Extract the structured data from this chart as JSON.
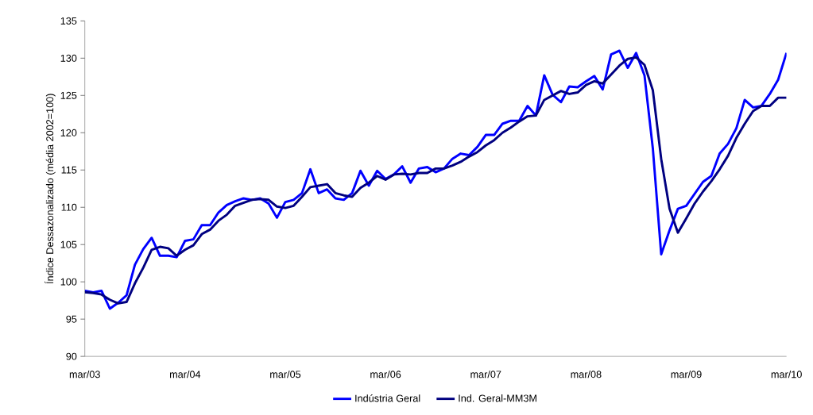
{
  "chart_data": {
    "type": "line",
    "ylabel": "Índice Dessazonalizado (média 2002=100)",
    "categories": [
      "mar/03",
      null,
      null,
      null,
      null,
      null,
      null,
      null,
      null,
      null,
      null,
      null,
      "mar/04",
      null,
      null,
      null,
      null,
      null,
      null,
      null,
      null,
      null,
      null,
      null,
      "mar/05",
      null,
      null,
      null,
      null,
      null,
      null,
      null,
      null,
      null,
      null,
      null,
      "mar/06",
      null,
      null,
      null,
      null,
      null,
      null,
      null,
      null,
      null,
      null,
      null,
      "mar/07",
      null,
      null,
      null,
      null,
      null,
      null,
      null,
      null,
      null,
      null,
      null,
      "mar/08",
      null,
      null,
      null,
      null,
      null,
      null,
      null,
      null,
      null,
      null,
      null,
      "mar/09",
      null,
      null,
      null,
      null,
      null,
      null,
      null,
      null,
      null,
      null,
      null,
      "mar/10"
    ],
    "series": [
      {
        "name": "Indústria Geral",
        "color": "#0000ff",
        "values": [
          98.8,
          98.6,
          98.8,
          96.4,
          97.2,
          98.2,
          102.3,
          104.4,
          105.9,
          103.5,
          103.5,
          103.3,
          105.5,
          105.7,
          107.6,
          107.6,
          109.3,
          110.3,
          110.8,
          111.2,
          111.0,
          111.2,
          110.5,
          108.6,
          110.7,
          111.0,
          111.9,
          115.1,
          111.9,
          112.4,
          111.2,
          111.0,
          111.9,
          114.9,
          112.9,
          114.9,
          113.8,
          114.4,
          115.5,
          113.3,
          115.2,
          115.4,
          114.7,
          115.2,
          116.5,
          117.2,
          117.0,
          118.1,
          119.7,
          119.7,
          121.2,
          121.6,
          121.6,
          123.6,
          122.3,
          127.7,
          125.1,
          124.1,
          126.2,
          126.1,
          126.9,
          127.6,
          125.8,
          130.5,
          131.0,
          128.7,
          130.7,
          127.7,
          117.9,
          103.7,
          106.9,
          109.8,
          110.2,
          111.8,
          113.4,
          114.2,
          117.2,
          118.5,
          120.6,
          124.4,
          123.4,
          123.6,
          125.2,
          127.1,
          130.7
        ]
      },
      {
        "name": "Ind. Geral-MM3M",
        "color": "#000080",
        "values": [
          98.6,
          98.5,
          98.3,
          97.6,
          97.1,
          97.3,
          99.8,
          101.9,
          104.3,
          104.7,
          104.5,
          103.5,
          104.3,
          104.9,
          106.4,
          107.0,
          108.2,
          109.0,
          110.2,
          110.6,
          111.0,
          111.1,
          111.0,
          110.1,
          109.9,
          110.2,
          111.4,
          112.7,
          112.9,
          113.1,
          111.9,
          111.6,
          111.4,
          112.6,
          113.3,
          114.2,
          113.7,
          114.4,
          114.5,
          114.4,
          114.6,
          114.6,
          115.2,
          115.2,
          115.6,
          116.1,
          116.8,
          117.4,
          118.3,
          119.0,
          120.0,
          120.7,
          121.5,
          122.2,
          122.3,
          124.4,
          125.0,
          125.6,
          125.2,
          125.4,
          126.4,
          126.9,
          126.6,
          127.8,
          129.0,
          129.9,
          130.1,
          129.1,
          125.7,
          116.5,
          109.8,
          106.6,
          108.5,
          110.5,
          112.1,
          113.5,
          115.1,
          116.9,
          119.3,
          121.2,
          122.9,
          123.6,
          123.6,
          124.7,
          124.7
        ]
      }
    ],
    "ylim": [
      90,
      135
    ],
    "yticks": [
      90,
      95,
      100,
      105,
      110,
      115,
      120,
      125,
      130,
      135
    ],
    "legend": "bottom",
    "marker": "none",
    "line_style": "solid"
  }
}
